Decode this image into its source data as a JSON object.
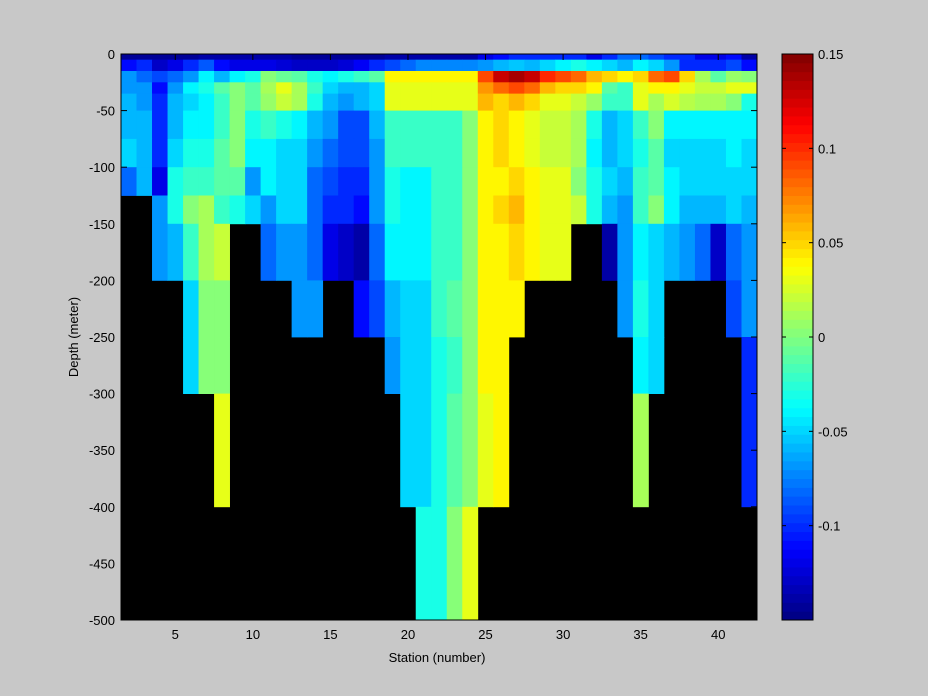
{
  "chart_data": {
    "type": "heatmap",
    "title": "",
    "xlabel": "Station (number)",
    "ylabel": "Depth (meter)",
    "xlim": [
      1.5,
      42.5
    ],
    "ylim": [
      -500,
      0
    ],
    "x_ticks": [
      5,
      10,
      15,
      20,
      25,
      30,
      35,
      40
    ],
    "y_ticks": [
      0,
      -50,
      -100,
      -150,
      -200,
      -250,
      -300,
      -350,
      -400,
      -450,
      -500
    ],
    "colorbar": {
      "min": -0.15,
      "max": 0.15,
      "colormap": "jet",
      "ticks": [
        0.15,
        0.1,
        0.05,
        0,
        -0.05,
        -0.1
      ],
      "tick_labels": [
        "0.15",
        "0.1",
        "0.05",
        "0",
        "-0.05",
        "-0.1"
      ]
    },
    "missing_color": "#000000",
    "stations": [
      2,
      3,
      4,
      5,
      6,
      7,
      8,
      9,
      10,
      11,
      12,
      13,
      14,
      15,
      16,
      17,
      18,
      19,
      20,
      21,
      22,
      23,
      24,
      25,
      26,
      27,
      28,
      29,
      30,
      31,
      32,
      33,
      34,
      35,
      36,
      37,
      38,
      39,
      40,
      41,
      42
    ],
    "depth_edges": [
      0,
      -5,
      -15,
      -25,
      -35,
      -50,
      -75,
      -100,
      -125,
      -150,
      -200,
      -250,
      -300,
      -400,
      -500
    ],
    "values": [
      [
        -0.145,
        -0.145,
        -0.145,
        -0.145,
        -0.145,
        -0.14,
        -0.14,
        -0.14,
        -0.14,
        -0.14,
        -0.14,
        -0.145,
        -0.145,
        -0.145,
        -0.145,
        -0.145,
        -0.145,
        -0.14,
        -0.14,
        -0.14,
        -0.14,
        -0.14,
        -0.14,
        -0.12,
        -0.11,
        -0.1,
        -0.1,
        -0.1,
        -0.1,
        -0.1,
        -0.12,
        -0.1,
        -0.08,
        -0.08,
        -0.09,
        -0.1,
        -0.1,
        -0.12,
        -0.12,
        -0.11,
        -0.14
      ],
      [
        -0.11,
        -0.1,
        -0.13,
        -0.12,
        -0.1,
        -0.085,
        -0.11,
        -0.12,
        -0.12,
        -0.12,
        -0.125,
        -0.13,
        -0.13,
        -0.13,
        -0.125,
        -0.115,
        -0.1,
        -0.09,
        -0.08,
        -0.075,
        -0.075,
        -0.075,
        -0.075,
        -0.07,
        -0.06,
        -0.055,
        -0.06,
        -0.05,
        -0.04,
        -0.03,
        -0.04,
        -0.05,
        -0.06,
        -0.04,
        -0.05,
        -0.07,
        -0.1,
        -0.1,
        -0.1,
        -0.09,
        -0.11
      ],
      [
        -0.07,
        -0.08,
        -0.09,
        -0.08,
        -0.07,
        -0.04,
        -0.06,
        -0.04,
        -0.03,
        0.0,
        -0.005,
        -0.01,
        -0.03,
        -0.04,
        -0.03,
        -0.02,
        -0.01,
        0.04,
        0.04,
        0.04,
        0.04,
        0.04,
        0.04,
        0.09,
        0.13,
        0.14,
        0.13,
        0.1,
        0.09,
        0.08,
        0.06,
        0.05,
        0.04,
        0.05,
        0.08,
        0.09,
        0.05,
        0.01,
        -0.01,
        0.005,
        0.0
      ],
      [
        -0.07,
        -0.07,
        -0.11,
        -0.07,
        -0.04,
        -0.03,
        -0.01,
        0.0,
        -0.01,
        0.01,
        0.03,
        0.01,
        -0.02,
        -0.05,
        -0.06,
        -0.06,
        -0.05,
        0.03,
        0.03,
        0.03,
        0.03,
        0.03,
        0.03,
        0.07,
        0.08,
        0.09,
        0.08,
        0.06,
        0.05,
        0.05,
        0.04,
        -0.01,
        -0.02,
        0.03,
        0.04,
        0.04,
        0.03,
        0.02,
        0.02,
        0.03,
        0.03
      ],
      [
        -0.06,
        -0.07,
        -0.1,
        -0.06,
        -0.05,
        -0.04,
        -0.02,
        0.0,
        -0.01,
        0.005,
        0.02,
        0.01,
        -0.03,
        -0.06,
        -0.07,
        -0.06,
        -0.05,
        0.03,
        0.03,
        0.03,
        0.03,
        0.03,
        0.03,
        0.06,
        0.05,
        0.06,
        0.05,
        0.03,
        0.03,
        0.02,
        0.005,
        -0.02,
        -0.02,
        0.03,
        0.01,
        0.025,
        0.015,
        0.01,
        0.01,
        0.0,
        -0.03
      ],
      [
        -0.06,
        -0.06,
        -0.1,
        -0.06,
        -0.04,
        -0.04,
        -0.02,
        0.0,
        -0.03,
        -0.02,
        -0.03,
        -0.04,
        -0.06,
        -0.07,
        -0.09,
        -0.09,
        -0.06,
        -0.02,
        -0.02,
        -0.02,
        -0.02,
        -0.02,
        0.0,
        0.04,
        0.05,
        0.04,
        0.03,
        0.02,
        0.02,
        0.01,
        -0.03,
        -0.06,
        -0.05,
        -0.02,
        0.0,
        -0.04,
        -0.04,
        -0.04,
        -0.04,
        -0.04,
        -0.04
      ],
      [
        -0.05,
        -0.06,
        -0.1,
        -0.05,
        -0.03,
        -0.03,
        -0.01,
        0.0,
        -0.04,
        -0.04,
        -0.05,
        -0.05,
        -0.07,
        -0.08,
        -0.09,
        -0.09,
        -0.07,
        -0.02,
        -0.02,
        -0.02,
        -0.02,
        -0.02,
        0.0,
        0.04,
        0.05,
        0.04,
        0.03,
        0.02,
        0.02,
        0.01,
        -0.04,
        -0.06,
        -0.05,
        -0.03,
        -0.01,
        -0.05,
        -0.05,
        -0.05,
        -0.05,
        -0.04,
        -0.05
      ],
      [
        -0.08,
        -0.06,
        -0.12,
        -0.03,
        -0.02,
        -0.02,
        -0.01,
        -0.01,
        -0.07,
        -0.04,
        -0.05,
        -0.05,
        -0.08,
        -0.09,
        -0.1,
        -0.1,
        -0.07,
        -0.03,
        -0.04,
        -0.04,
        -0.02,
        -0.02,
        0.0,
        0.04,
        0.04,
        0.05,
        0.04,
        0.03,
        0.03,
        0.0,
        -0.03,
        -0.05,
        -0.06,
        -0.02,
        -0.01,
        -0.04,
        -0.05,
        -0.05,
        -0.05,
        -0.05,
        -0.05
      ],
      [
        null,
        null,
        -0.07,
        -0.03,
        0.0,
        0.01,
        -0.02,
        -0.03,
        -0.05,
        -0.07,
        -0.05,
        -0.05,
        -0.08,
        -0.1,
        -0.1,
        -0.11,
        -0.07,
        -0.03,
        -0.04,
        -0.04,
        -0.02,
        -0.02,
        0.0,
        0.04,
        0.05,
        0.06,
        0.04,
        0.03,
        0.03,
        0.02,
        -0.03,
        -0.06,
        -0.07,
        -0.02,
        -0.0,
        -0.04,
        -0.06,
        -0.06,
        -0.06,
        -0.05,
        -0.06
      ],
      [
        null,
        null,
        -0.07,
        -0.06,
        -0.02,
        0.01,
        0.02,
        null,
        null,
        -0.08,
        -0.07,
        -0.07,
        -0.08,
        -0.12,
        -0.13,
        -0.14,
        -0.08,
        -0.04,
        -0.04,
        -0.04,
        -0.02,
        -0.02,
        0.0,
        0.04,
        0.04,
        0.05,
        0.04,
        0.03,
        0.03,
        null,
        null,
        -0.14,
        -0.07,
        -0.04,
        -0.05,
        -0.06,
        -0.07,
        -0.08,
        -0.13,
        -0.08,
        -0.07
      ],
      [
        null,
        null,
        null,
        null,
        -0.05,
        0.0,
        0.0,
        null,
        null,
        null,
        null,
        -0.07,
        -0.07,
        null,
        null,
        -0.11,
        -0.09,
        -0.06,
        -0.05,
        -0.05,
        -0.02,
        -0.01,
        0.0,
        0.04,
        0.04,
        0.04,
        null,
        null,
        null,
        null,
        null,
        null,
        -0.07,
        -0.03,
        -0.05,
        null,
        null,
        null,
        null,
        -0.09,
        -0.07
      ],
      [
        null,
        null,
        null,
        null,
        -0.05,
        0.0,
        0.0,
        null,
        null,
        null,
        null,
        null,
        null,
        null,
        null,
        null,
        null,
        -0.07,
        -0.05,
        -0.05,
        -0.03,
        -0.02,
        0.0,
        0.04,
        0.04,
        null,
        null,
        null,
        null,
        null,
        null,
        null,
        null,
        -0.04,
        -0.05,
        null,
        null,
        null,
        null,
        null,
        -0.1
      ],
      [
        null,
        null,
        null,
        null,
        null,
        null,
        0.03,
        null,
        null,
        null,
        null,
        null,
        null,
        null,
        null,
        null,
        null,
        null,
        -0.05,
        -0.05,
        -0.03,
        -0.01,
        0.0,
        0.03,
        0.04,
        null,
        null,
        null,
        null,
        null,
        null,
        null,
        null,
        0.01,
        null,
        null,
        null,
        null,
        null,
        null,
        -0.1
      ],
      [
        null,
        null,
        null,
        null,
        null,
        null,
        null,
        null,
        null,
        null,
        null,
        null,
        null,
        null,
        null,
        null,
        null,
        null,
        null,
        -0.03,
        -0.03,
        0.0,
        0.03,
        null,
        null,
        null,
        null,
        null,
        null,
        null,
        null,
        null,
        null,
        null,
        null,
        null,
        null,
        null,
        null,
        null,
        null
      ]
    ]
  }
}
